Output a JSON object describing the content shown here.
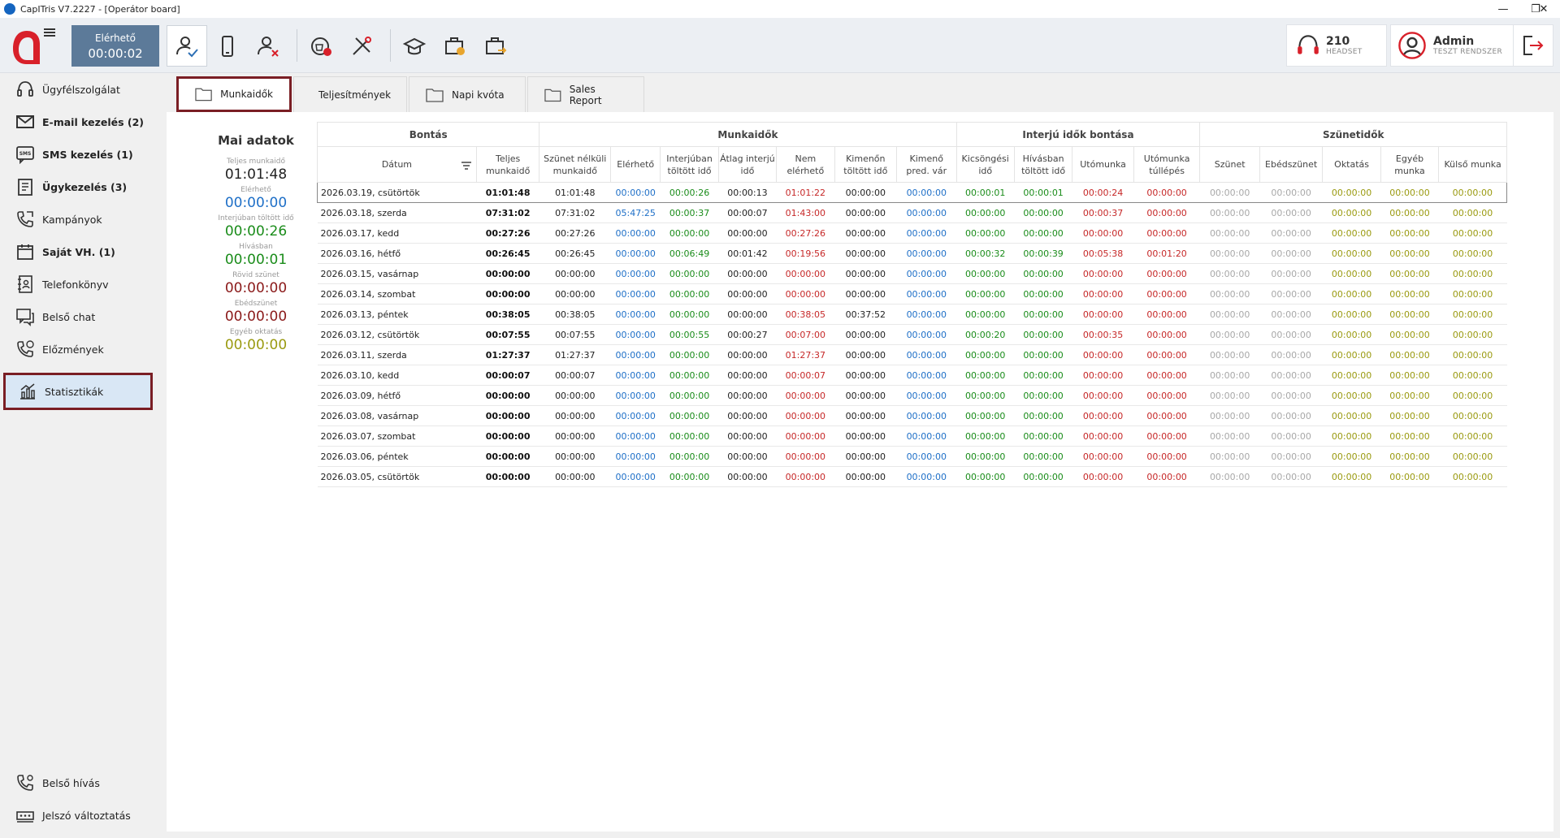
{
  "window": {
    "title": "CapITris V7.2227 - [Operátor board]"
  },
  "toolbar": {
    "status_label": "Elérhető",
    "status_timer": "00:00:02",
    "headset_count": "210",
    "headset_label": "HEADSET",
    "user_name": "Admin",
    "user_system": "TESZT RENDSZER"
  },
  "sidebar": {
    "items": [
      {
        "label": "Ügyfélszolgálat",
        "icon": "headset-icon"
      },
      {
        "label": "E-mail kezelés (2)",
        "icon": "email-icon"
      },
      {
        "label": "SMS kezelés (1)",
        "icon": "sms-icon"
      },
      {
        "label": "Ügykezelés (3)",
        "icon": "case-icon"
      },
      {
        "label": "Kampányok",
        "icon": "campaign-phone-icon"
      },
      {
        "label": "Saját VH. (1)",
        "icon": "calendar-icon"
      },
      {
        "label": "Telefonkönyv",
        "icon": "phonebook-icon"
      },
      {
        "label": "Belső chat",
        "icon": "chat-icon"
      },
      {
        "label": "Előzmények",
        "icon": "history-icon"
      },
      {
        "label": "Statisztikák",
        "icon": "statistics-icon"
      }
    ],
    "bottom_items": [
      {
        "label": "Belső hívás",
        "icon": "internal-call-icon"
      },
      {
        "label": "Jelszó változtatás",
        "icon": "password-icon"
      }
    ]
  },
  "tabs": [
    "Munkaidők",
    "Teljesítmények",
    "Napi kvóta",
    "Sales Report"
  ],
  "mai_adatok": {
    "heading": "Mai adatok",
    "items": [
      {
        "label": "Teljes munkaidő",
        "value": "01:01:48",
        "color": "#222222"
      },
      {
        "label": "Elérhető",
        "value": "00:00:00",
        "color": "#1e6fc7"
      },
      {
        "label": "Interjúban töltött idő",
        "value": "00:00:26",
        "color": "#1a8c1a"
      },
      {
        "label": "Hívásban",
        "value": "00:00:01",
        "color": "#1a8c1a"
      },
      {
        "label": "Rövid szünet",
        "value": "00:00:00",
        "color": "#8b1a1a"
      },
      {
        "label": "Ebédszünet",
        "value": "00:00:00",
        "color": "#8b1a1a"
      },
      {
        "label": "Egyéb oktatás",
        "value": "00:00:00",
        "color": "#9a9a10"
      }
    ]
  },
  "table": {
    "groups": [
      "Bontás",
      "Munkaidők",
      "Interjú idők bontása",
      "Szünetidők"
    ],
    "columns": [
      "Dátum",
      "Teljes munkaidő",
      "Szünet nélküli munkaidő",
      "Elérhető",
      "Interjúban töltött idő",
      "Átlag interjú idő",
      "Nem elérhető",
      "Kimenőn töltött idő",
      "Kimenő pred. vár",
      "Kicsöngési idő",
      "Hívásban töltött idő",
      "Utómunka",
      "Utómunka túllépés",
      "Szünet",
      "Ebédszünet",
      "Oktatás",
      "Egyéb munka",
      "Külső munka"
    ],
    "rows": [
      [
        "2026.03.19, csütörtök",
        "01:01:48",
        "01:01:48",
        "00:00:00",
        "00:00:26",
        "00:00:13",
        "01:01:22",
        "00:00:00",
        "00:00:00",
        "00:00:01",
        "00:00:01",
        "00:00:24",
        "00:00:00",
        "00:00:00",
        "00:00:00",
        "00:00:00",
        "00:00:00",
        "00:00:00"
      ],
      [
        "2026.03.18, szerda",
        "07:31:02",
        "07:31:02",
        "05:47:25",
        "00:00:37",
        "00:00:07",
        "01:43:00",
        "00:00:00",
        "00:00:00",
        "00:00:00",
        "00:00:00",
        "00:00:37",
        "00:00:00",
        "00:00:00",
        "00:00:00",
        "00:00:00",
        "00:00:00",
        "00:00:00"
      ],
      [
        "2026.03.17, kedd",
        "00:27:26",
        "00:27:26",
        "00:00:00",
        "00:00:00",
        "00:00:00",
        "00:27:26",
        "00:00:00",
        "00:00:00",
        "00:00:00",
        "00:00:00",
        "00:00:00",
        "00:00:00",
        "00:00:00",
        "00:00:00",
        "00:00:00",
        "00:00:00",
        "00:00:00"
      ],
      [
        "2026.03.16, hétfő",
        "00:26:45",
        "00:26:45",
        "00:00:00",
        "00:06:49",
        "00:01:42",
        "00:19:56",
        "00:00:00",
        "00:00:00",
        "00:00:32",
        "00:00:39",
        "00:05:38",
        "00:01:20",
        "00:00:00",
        "00:00:00",
        "00:00:00",
        "00:00:00",
        "00:00:00"
      ],
      [
        "2026.03.15, vasárnap",
        "00:00:00",
        "00:00:00",
        "00:00:00",
        "00:00:00",
        "00:00:00",
        "00:00:00",
        "00:00:00",
        "00:00:00",
        "00:00:00",
        "00:00:00",
        "00:00:00",
        "00:00:00",
        "00:00:00",
        "00:00:00",
        "00:00:00",
        "00:00:00",
        "00:00:00"
      ],
      [
        "2026.03.14, szombat",
        "00:00:00",
        "00:00:00",
        "00:00:00",
        "00:00:00",
        "00:00:00",
        "00:00:00",
        "00:00:00",
        "00:00:00",
        "00:00:00",
        "00:00:00",
        "00:00:00",
        "00:00:00",
        "00:00:00",
        "00:00:00",
        "00:00:00",
        "00:00:00",
        "00:00:00"
      ],
      [
        "2026.03.13, péntek",
        "00:38:05",
        "00:38:05",
        "00:00:00",
        "00:00:00",
        "00:00:00",
        "00:38:05",
        "00:37:52",
        "00:00:00",
        "00:00:00",
        "00:00:00",
        "00:00:00",
        "00:00:00",
        "00:00:00",
        "00:00:00",
        "00:00:00",
        "00:00:00",
        "00:00:00"
      ],
      [
        "2026.03.12, csütörtök",
        "00:07:55",
        "00:07:55",
        "00:00:00",
        "00:00:55",
        "00:00:27",
        "00:07:00",
        "00:00:00",
        "00:00:00",
        "00:00:20",
        "00:00:00",
        "00:00:35",
        "00:00:00",
        "00:00:00",
        "00:00:00",
        "00:00:00",
        "00:00:00",
        "00:00:00"
      ],
      [
        "2026.03.11, szerda",
        "01:27:37",
        "01:27:37",
        "00:00:00",
        "00:00:00",
        "00:00:00",
        "01:27:37",
        "00:00:00",
        "00:00:00",
        "00:00:00",
        "00:00:00",
        "00:00:00",
        "00:00:00",
        "00:00:00",
        "00:00:00",
        "00:00:00",
        "00:00:00",
        "00:00:00"
      ],
      [
        "2026.03.10, kedd",
        "00:00:07",
        "00:00:07",
        "00:00:00",
        "00:00:00",
        "00:00:00",
        "00:00:07",
        "00:00:00",
        "00:00:00",
        "00:00:00",
        "00:00:00",
        "00:00:00",
        "00:00:00",
        "00:00:00",
        "00:00:00",
        "00:00:00",
        "00:00:00",
        "00:00:00"
      ],
      [
        "2026.03.09, hétfő",
        "00:00:00",
        "00:00:00",
        "00:00:00",
        "00:00:00",
        "00:00:00",
        "00:00:00",
        "00:00:00",
        "00:00:00",
        "00:00:00",
        "00:00:00",
        "00:00:00",
        "00:00:00",
        "00:00:00",
        "00:00:00",
        "00:00:00",
        "00:00:00",
        "00:00:00"
      ],
      [
        "2026.03.08, vasárnap",
        "00:00:00",
        "00:00:00",
        "00:00:00",
        "00:00:00",
        "00:00:00",
        "00:00:00",
        "00:00:00",
        "00:00:00",
        "00:00:00",
        "00:00:00",
        "00:00:00",
        "00:00:00",
        "00:00:00",
        "00:00:00",
        "00:00:00",
        "00:00:00",
        "00:00:00"
      ],
      [
        "2026.03.07, szombat",
        "00:00:00",
        "00:00:00",
        "00:00:00",
        "00:00:00",
        "00:00:00",
        "00:00:00",
        "00:00:00",
        "00:00:00",
        "00:00:00",
        "00:00:00",
        "00:00:00",
        "00:00:00",
        "00:00:00",
        "00:00:00",
        "00:00:00",
        "00:00:00",
        "00:00:00"
      ],
      [
        "2026.03.06, péntek",
        "00:00:00",
        "00:00:00",
        "00:00:00",
        "00:00:00",
        "00:00:00",
        "00:00:00",
        "00:00:00",
        "00:00:00",
        "00:00:00",
        "00:00:00",
        "00:00:00",
        "00:00:00",
        "00:00:00",
        "00:00:00",
        "00:00:00",
        "00:00:00",
        "00:00:00"
      ],
      [
        "2026.03.05, csütörtök",
        "00:00:00",
        "00:00:00",
        "00:00:00",
        "00:00:00",
        "00:00:00",
        "00:00:00",
        "00:00:00",
        "00:00:00",
        "00:00:00",
        "00:00:00",
        "00:00:00",
        "00:00:00",
        "00:00:00",
        "00:00:00",
        "00:00:00",
        "00:00:00",
        "00:00:00"
      ]
    ]
  },
  "colors": {
    "accent_border": "#7a1e24",
    "status_box": "#5c7a99",
    "blue": "#1e6fc7",
    "green": "#1a8c1a",
    "red": "#c62828",
    "gray": "#a8a8a8",
    "olive": "#9a9a10"
  }
}
